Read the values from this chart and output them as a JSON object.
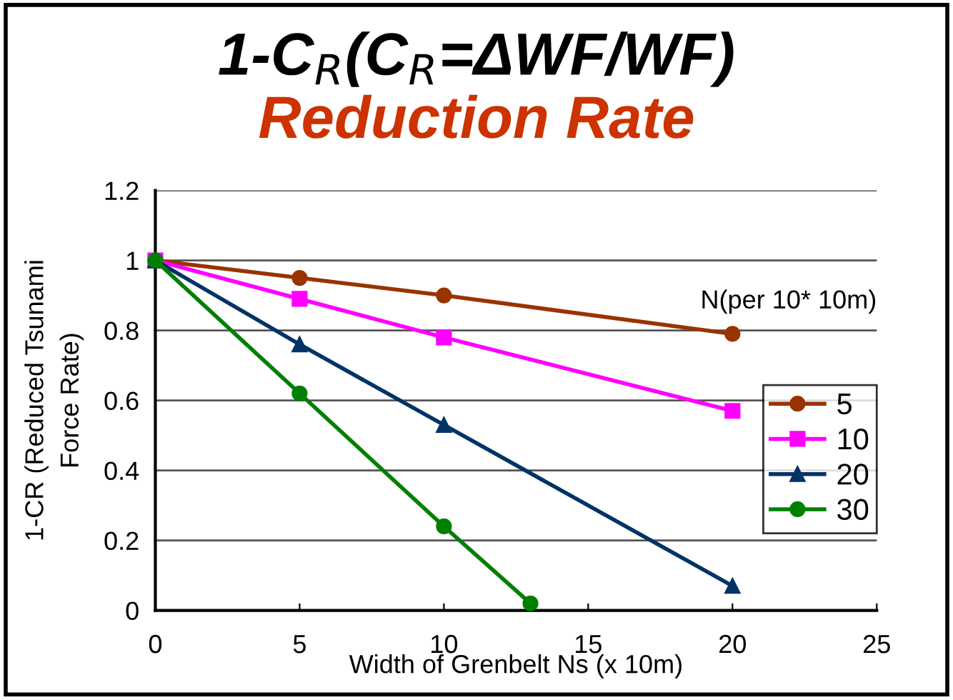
{
  "chart_data": {
    "type": "line",
    "title": "1-C$_{R}$(C$_{R}$=ΔWF/WF)",
    "subtitle": "Reduction Rate",
    "xlabel": "Width of Grenbelt Ns (x 10m)",
    "ylabel": "1-CR (Reduced Tsunami\nForce Rate)",
    "annotations": [
      "N(per 10* 10m)"
    ],
    "xlim": [
      0,
      25
    ],
    "xticks": [
      0,
      5,
      10,
      15,
      20,
      25
    ],
    "ylim": [
      0,
      1.2
    ],
    "yticks": [
      0,
      0.2,
      0.4,
      0.6,
      0.8,
      1,
      1.2
    ],
    "grid": "y",
    "legend": "right",
    "series": [
      {
        "name": "5",
        "color": "#993300",
        "marker": "circle",
        "x": [
          0,
          5,
          10,
          20
        ],
        "values": [
          1,
          0.95,
          0.9,
          0.79
        ]
      },
      {
        "name": "10",
        "color": "#ff00ff",
        "marker": "square",
        "x": [
          0,
          5,
          10,
          20
        ],
        "values": [
          1,
          0.89,
          0.78,
          0.57
        ]
      },
      {
        "name": "20",
        "color": "#003366",
        "marker": "triangle",
        "x": [
          0,
          5,
          10,
          20
        ],
        "values": [
          1,
          0.76,
          0.53,
          0.07
        ]
      },
      {
        "name": "30",
        "color": "#008000",
        "marker": "circle",
        "x": [
          0,
          5,
          10,
          13
        ],
        "values": [
          1,
          0.62,
          0.24,
          0.02
        ]
      }
    ]
  }
}
